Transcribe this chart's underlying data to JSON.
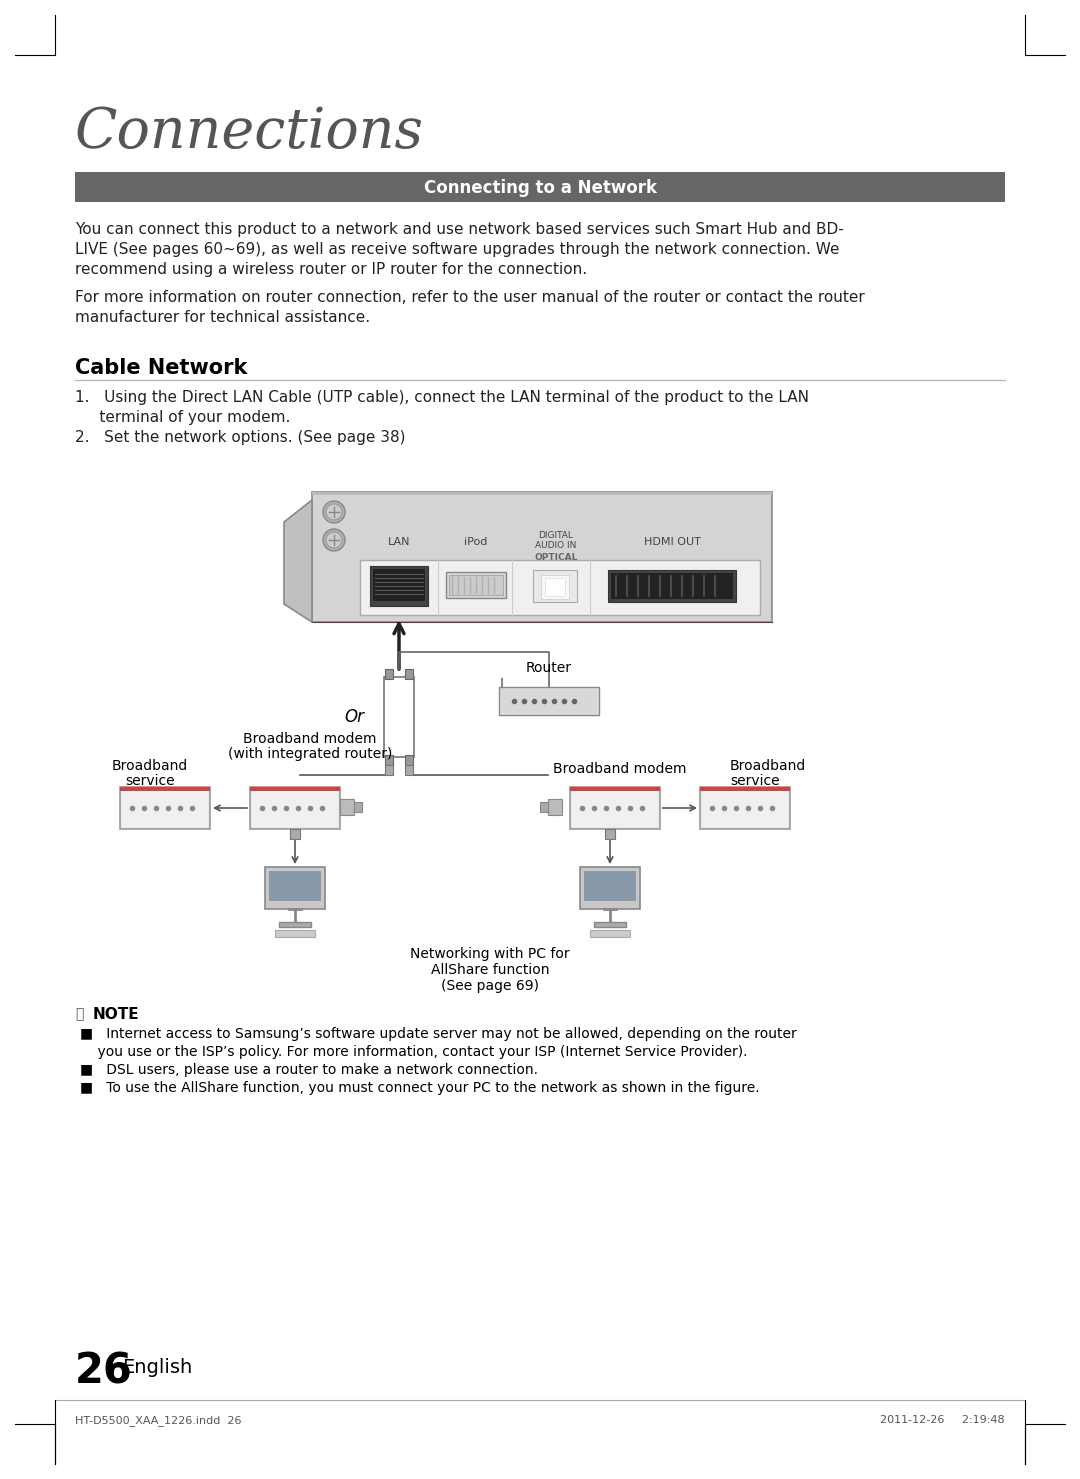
{
  "page_bg": "#ffffff",
  "title": "Connections",
  "section_header": "Connecting to a Network",
  "section_header_bg": "#666666",
  "section_header_color": "#ffffff",
  "para1_l1": "You can connect this product to a network and use network based services such Smart Hub and BD-",
  "para1_l2": "LIVE (See pages 60~69), as well as receive software upgrades through the network connection. We",
  "para1_l3": "recommend using a wireless router or IP router for the connection.",
  "para2_l1": "For more information on router connection, refer to the user manual of the router or contact the router",
  "para2_l2": "manufacturer for technical assistance.",
  "cable_network_title": "Cable Network",
  "step1_l1": "1.   Using the Direct LAN Cable (UTP cable), connect the LAN terminal of the product to the LAN",
  "step1_l2": "     terminal of your modem.",
  "step2": "2.   Set the network options. (See page 38)",
  "note_icon": "‹›",
  "note_title": "NOTE",
  "note1_l1": "■   Internet access to Samsung’s software update server may not be allowed, depending on the router",
  "note1_l2": "    you use or the ISP’s policy. For more information, contact your ISP (Internet Service Provider).",
  "note2": "■   DSL users, please use a router to make a network connection.",
  "note3": "■   To use the AllShare function, you must connect your PC to the network as shown in the figure.",
  "page_number": "26",
  "page_label": "English",
  "footer_left": "HT-D5500_XAA_1226.indd  26",
  "footer_right": "2011-12-26     2:19:48",
  "diagram_caption_l1": "Networking with PC for",
  "diagram_caption_l2": "AllShare function",
  "diagram_caption_l3": "(See page 69)",
  "router_label": "Router",
  "or_label": "Or",
  "bb_modem_left_l1": "Broadband modem",
  "bb_modem_left_l2": "(with integrated router)",
  "bb_service_left_l1": "Broadband",
  "bb_service_left_l2": "service",
  "bb_modem_right": "Broadband modem",
  "bb_service_right_l1": "Broadband",
  "bb_service_right_l2": "service",
  "device_bg": "#d8d8d8",
  "device_border": "#888888",
  "port_bg": "#e8e8e8",
  "port_border": "#999999",
  "lan_label": "LAN",
  "ipod_label": "iPod",
  "digital_label": "DIGITAL\nAUDIO IN",
  "optical_label": "OPTICAL",
  "hdmi_label": "HDMI OUT"
}
